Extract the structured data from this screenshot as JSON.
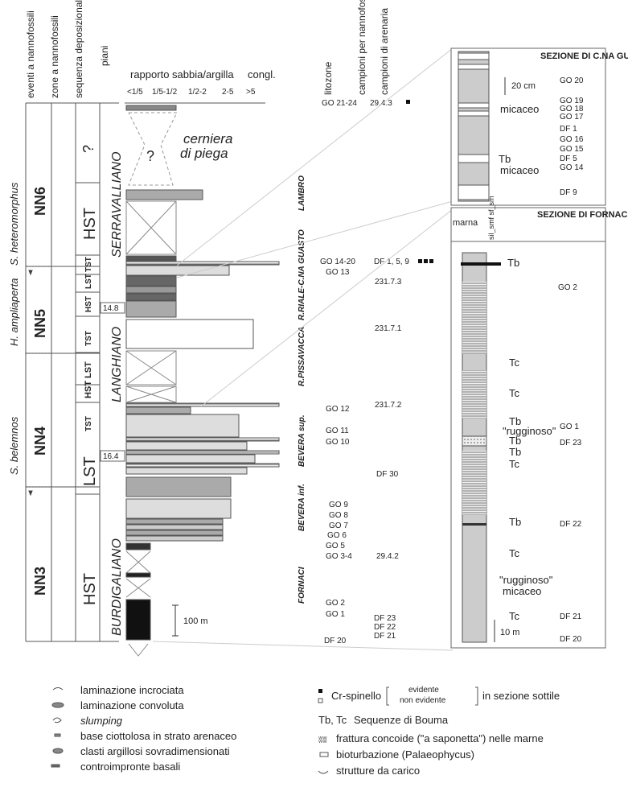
{
  "column_headers": {
    "eventi": "eventi a nannofossili",
    "zone": "zone a nannofossili",
    "sequenza": "sequenza deposizionale",
    "piani": "piani",
    "rapporto": "rapporto sabbia/argilla",
    "congl": "congl.",
    "ratio_ticks": [
      "<1/5",
      "1/5-1/2",
      "1/2-2",
      "2-5",
      ">5"
    ],
    "litozone": "litozone",
    "campioni_nanno": "campioni per nannofossili calcarei",
    "campioni_arenaria": "campioni di arenaria"
  },
  "nannofossil_events": [
    "S. heteromorphus",
    "H. ampliaperta",
    "S. belemnos"
  ],
  "zones": [
    "NN6",
    "NN5",
    "NN4",
    "NN3"
  ],
  "sequences": [
    "?",
    "HST",
    "TST",
    "LST",
    "HST",
    "TST",
    "LST",
    "HST",
    "TST",
    "LST",
    "HST"
  ],
  "stages": [
    "SERRAVALLIANO",
    "LANGHIANO",
    "BURDIGALIANO"
  ],
  "ages": [
    "14.8",
    "16.4"
  ],
  "fold_hinge": [
    "cerniera",
    "di piega"
  ],
  "question_mark": "?",
  "scale_bar": "100 m",
  "litozone_labels": [
    "LAMBRO",
    "R.RIALE-C.NA GUASTO",
    "R.PISSAVACCA",
    "BEVERA sup.",
    "BEVERA inf.",
    "FORNACI"
  ],
  "nanno_samples": [
    "GO 21-24",
    "GO 14-20",
    "GO 13",
    "GO 12",
    "GO 11",
    "GO 10",
    "GO 9",
    "GO 8",
    "GO 7",
    "GO 6",
    "GO 5",
    "GO 3-4",
    "GO 2",
    "GO 1",
    "DF 20"
  ],
  "sandstone_samples": [
    "29.4.3",
    "DF 1, 5, 9",
    "231.7.3",
    "231.7.1",
    "231.7.2",
    "DF 30",
    "29.4.2",
    "DF 23",
    "DF 22",
    "DF 21"
  ],
  "section_guasto": {
    "title": "SEZIONE DI C.NA GUASTO",
    "scale": "20 cm",
    "labels": [
      "micaceo",
      "Tb",
      "micaceo"
    ],
    "samples": [
      "GO 20",
      "GO 19",
      "GO 18",
      "GO 17",
      "DF 1",
      "GO 16",
      "GO 15",
      "DF 5",
      "GO 14",
      "DF 9"
    ]
  },
  "section_fornaci": {
    "title": "SEZIONE DI FORNACI",
    "col_marna": "marna",
    "col_grain": "sil_smf sf_sm",
    "labels": [
      "Tb",
      "Tc",
      "Tc",
      "Tb",
      "\"rugginoso\"",
      "Tb",
      "Tb",
      "Tc",
      "Tb",
      "Tc",
      "\"rugginoso\"",
      "micaceo",
      "Tc"
    ],
    "samples": [
      "GO 2",
      "GO 1",
      "DF 23",
      "DF 22",
      "DF 21",
      "DF 20"
    ],
    "scale": "10 m"
  },
  "legend_left": [
    {
      "icon": "cross-lamination-icon",
      "text": "laminazione incrociata"
    },
    {
      "icon": "convolute-lamination-icon",
      "text": "laminazione convoluta"
    },
    {
      "icon": "slumping-icon",
      "text": "slumping"
    },
    {
      "icon": "pebbly-base-icon",
      "text": "base ciottolosa in strato arenaceo"
    },
    {
      "icon": "clay-clast-icon",
      "text": "clasti argillosi sovradimensionati"
    },
    {
      "icon": "sole-mark-icon",
      "text": "controimpronte basali"
    }
  ],
  "legend_right": {
    "spinel_label": "Cr-spinello",
    "spinel_evident": "evidente",
    "spinel_not_evident": "non evidente",
    "spinel_suffix": "in sezione sottile",
    "bouma_key": "Tb, Tc",
    "bouma_text": "Sequenze di Bouma",
    "items": [
      {
        "icon": "conchoidal-fracture-icon",
        "text": "frattura concoide (\"a saponetta\") nelle marne"
      },
      {
        "icon": "bioturbation-icon",
        "text": "bioturbazione (Palaeophycus)"
      },
      {
        "icon": "load-structure-icon",
        "text": "strutture da carico"
      }
    ]
  }
}
